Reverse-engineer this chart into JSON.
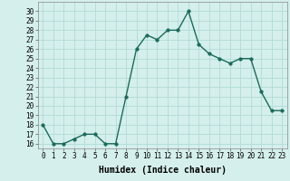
{
  "x": [
    0,
    1,
    2,
    3,
    4,
    5,
    6,
    7,
    8,
    9,
    10,
    11,
    12,
    13,
    14,
    15,
    16,
    17,
    18,
    19,
    20,
    21,
    22,
    23
  ],
  "y": [
    18,
    16,
    16,
    16.5,
    17,
    17,
    16,
    16,
    21,
    26,
    27.5,
    27,
    28,
    28,
    30,
    26.5,
    25.5,
    25,
    24.5,
    25,
    25,
    21.5,
    19.5,
    19.5
  ],
  "line_color": "#1a6b5a",
  "marker": "o",
  "markersize": 2.5,
  "linewidth": 1.0,
  "xlabel": "Humidex (Indice chaleur)",
  "xlabel_fontsize": 7,
  "background_color": "#d4efec",
  "grid_color": "#b2dbd7",
  "ylim": [
    15.5,
    31
  ],
  "xlim": [
    -0.5,
    23.5
  ],
  "yticks": [
    16,
    17,
    18,
    19,
    20,
    21,
    22,
    23,
    24,
    25,
    26,
    27,
    28,
    29,
    30
  ],
  "xticks": [
    0,
    1,
    2,
    3,
    4,
    5,
    6,
    7,
    8,
    9,
    10,
    11,
    12,
    13,
    14,
    15,
    16,
    17,
    18,
    19,
    20,
    21,
    22,
    23
  ],
  "tick_fontsize": 5.5,
  "ylabel_fontsize": 5.5
}
